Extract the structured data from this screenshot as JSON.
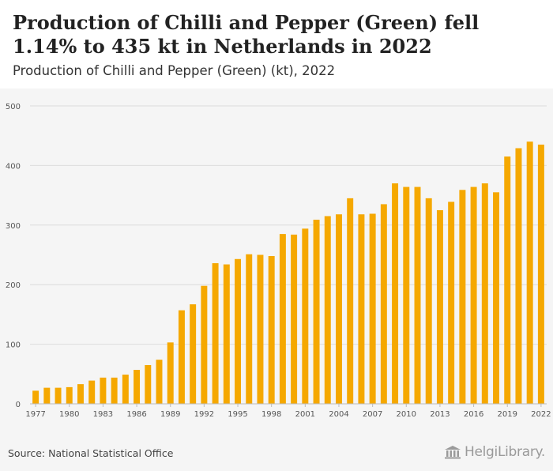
{
  "header": {
    "title": "Production of Chilli and Pepper (Green) fell 1.14% to 435 kt in Netherlands in 2022",
    "subtitle": "Production of Chilli and Pepper (Green) (kt), 2022"
  },
  "footer": {
    "source": "Source: National Statistical Office",
    "logo_text": "HelgiLibrary."
  },
  "colors": {
    "bar": "#f5a800",
    "grid": "#dcdcdc",
    "background": "#f5f5f5"
  },
  "chart_data": {
    "type": "bar",
    "title": "Production of Chilli and Pepper (Green) (kt), 2022",
    "xlabel": "",
    "ylabel": "",
    "ylim": [
      0,
      500
    ],
    "y_ticks": [
      0,
      100,
      200,
      300,
      400,
      500
    ],
    "grid": true,
    "x_tick_labels": [
      "1977",
      "1980",
      "1983",
      "1986",
      "1989",
      "1992",
      "1995",
      "1998",
      "2001",
      "2004",
      "2007",
      "2010",
      "2013",
      "2016",
      "2019",
      "2022"
    ],
    "categories": [
      "1977",
      "1978",
      "1979",
      "1980",
      "1981",
      "1982",
      "1983",
      "1984",
      "1985",
      "1986",
      "1987",
      "1988",
      "1989",
      "1990",
      "1991",
      "1992",
      "1993",
      "1994",
      "1995",
      "1996",
      "1997",
      "1998",
      "1999",
      "2000",
      "2001",
      "2002",
      "2003",
      "2004",
      "2005",
      "2006",
      "2007",
      "2008",
      "2009",
      "2010",
      "2011",
      "2012",
      "2013",
      "2014",
      "2015",
      "2016",
      "2017",
      "2018",
      "2019",
      "2020",
      "2021",
      "2022"
    ],
    "values": [
      22,
      27,
      27,
      28,
      33,
      39,
      44,
      44,
      49,
      57,
      65,
      74,
      103,
      157,
      167,
      198,
      236,
      234,
      243,
      251,
      250,
      248,
      285,
      284,
      294,
      309,
      315,
      318,
      345,
      318,
      319,
      335,
      370,
      364,
      364,
      345,
      325,
      339,
      359,
      364,
      370,
      355,
      415,
      429,
      440,
      435
    ]
  }
}
